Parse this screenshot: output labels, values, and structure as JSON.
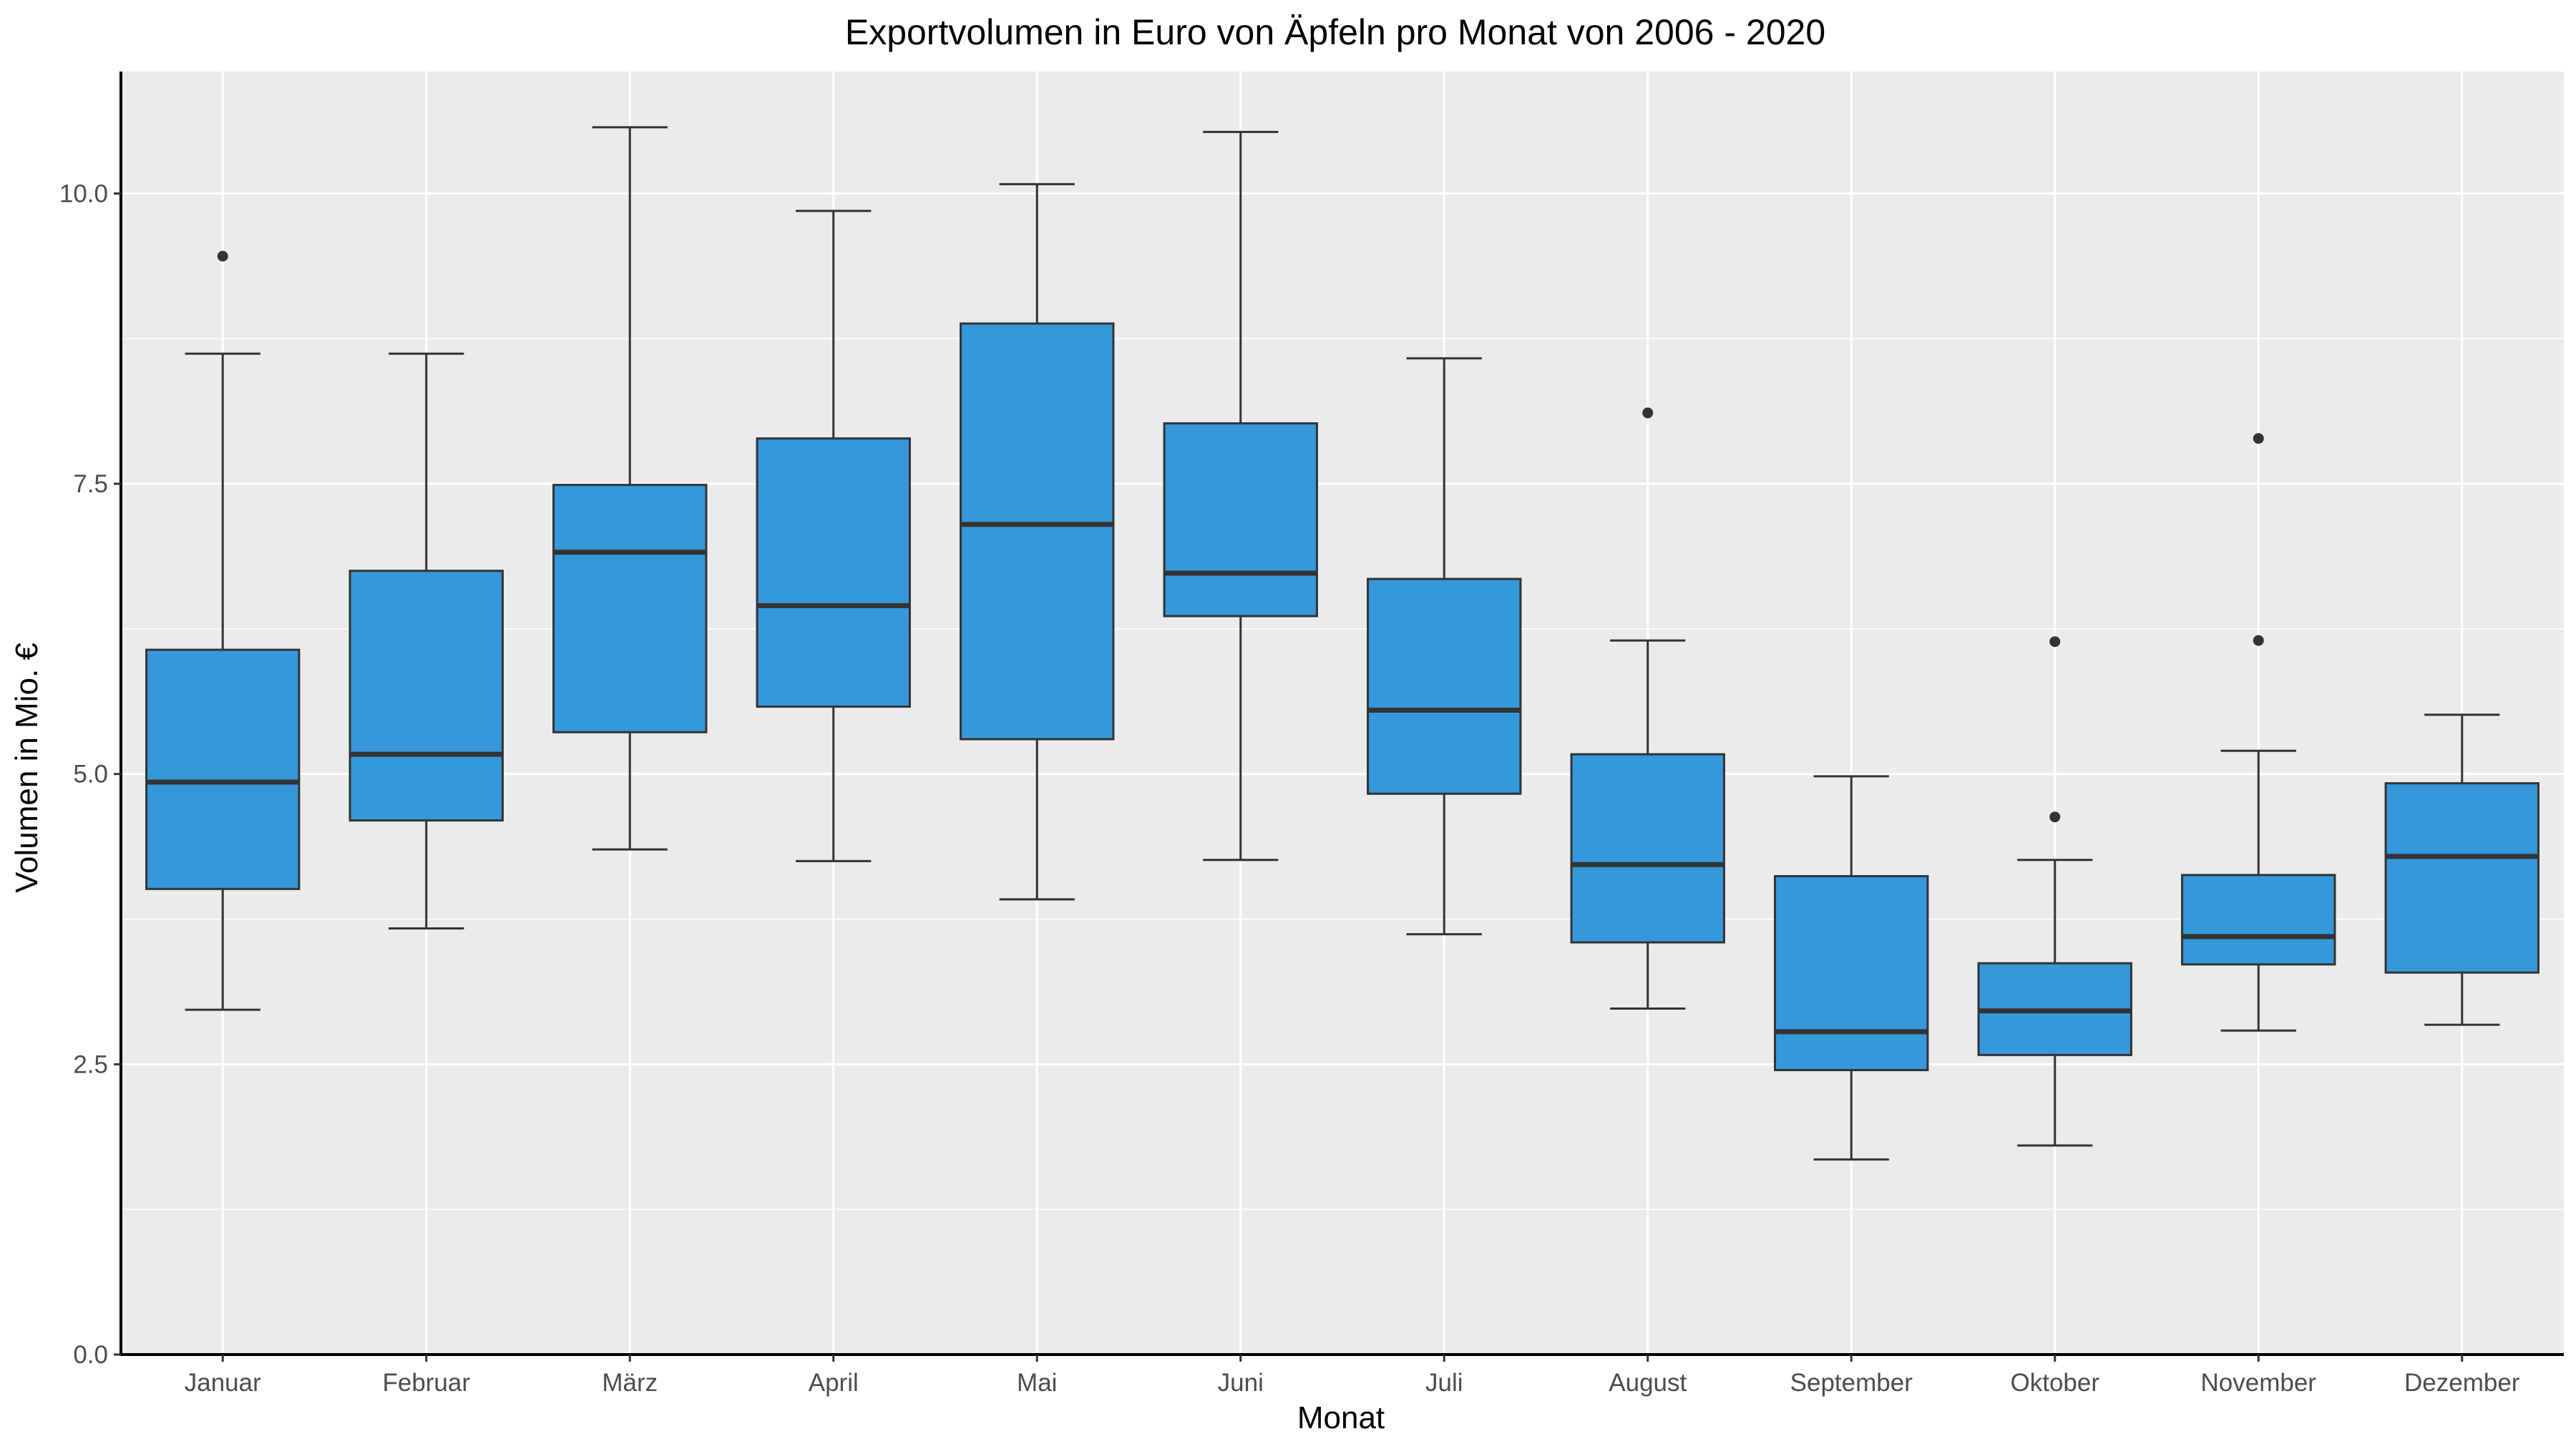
{
  "chart_data": {
    "type": "boxplot",
    "title": "Exportvolumen in Euro von Äpfeln pro Monat von 2006 - 2020",
    "xlabel": "Monat",
    "ylabel": "Volumen in Mio. €",
    "ylim": [
      0,
      11.05
    ],
    "yticks": [
      0,
      2.5,
      5,
      7.5,
      10
    ],
    "ytick_labels": [
      "0.0",
      "2.5",
      "5.0",
      "7.5",
      "10.0"
    ],
    "grid": true,
    "legend": "none",
    "colors": {
      "box_fill": "#3598DB",
      "panel_background": "#EBEBEB",
      "grid": "#FFFFFF",
      "outline": "#333333"
    },
    "categories": [
      "Januar",
      "Februar",
      "März",
      "April",
      "Mai",
      "Juni",
      "Juli",
      "August",
      "September",
      "Oktober",
      "November",
      "Dezember"
    ],
    "boxes": [
      {
        "category": "Januar",
        "whisker_low": 2.97,
        "q1": 4.01,
        "median": 4.93,
        "q3": 6.07,
        "whisker_high": 8.62,
        "outliers": [
          9.46
        ]
      },
      {
        "category": "Februar",
        "whisker_low": 3.67,
        "q1": 4.6,
        "median": 5.17,
        "q3": 6.75,
        "whisker_high": 8.62,
        "outliers": []
      },
      {
        "category": "März",
        "whisker_low": 4.35,
        "q1": 5.36,
        "median": 6.91,
        "q3": 7.49,
        "whisker_high": 10.57,
        "outliers": []
      },
      {
        "category": "April",
        "whisker_low": 4.25,
        "q1": 5.58,
        "median": 6.45,
        "q3": 7.89,
        "whisker_high": 9.85,
        "outliers": []
      },
      {
        "category": "Mai",
        "whisker_low": 3.92,
        "q1": 5.3,
        "median": 7.15,
        "q3": 8.88,
        "whisker_high": 10.08,
        "outliers": []
      },
      {
        "category": "Juni",
        "whisker_low": 4.26,
        "q1": 6.36,
        "median": 6.73,
        "q3": 8.02,
        "whisker_high": 10.53,
        "outliers": []
      },
      {
        "category": "Juli",
        "whisker_low": 3.62,
        "q1": 4.83,
        "median": 5.55,
        "q3": 6.68,
        "whisker_high": 8.58,
        "outliers": []
      },
      {
        "category": "August",
        "whisker_low": 2.98,
        "q1": 3.55,
        "median": 4.22,
        "q3": 5.17,
        "whisker_high": 6.15,
        "outliers": [
          8.11
        ]
      },
      {
        "category": "September",
        "whisker_low": 1.68,
        "q1": 2.45,
        "median": 2.78,
        "q3": 4.12,
        "whisker_high": 4.98,
        "outliers": []
      },
      {
        "category": "Oktober",
        "whisker_low": 1.8,
        "q1": 2.58,
        "median": 2.96,
        "q3": 3.37,
        "whisker_high": 4.26,
        "outliers": [
          4.63,
          6.14
        ]
      },
      {
        "category": "November",
        "whisker_low": 2.79,
        "q1": 3.36,
        "median": 3.6,
        "q3": 4.13,
        "whisker_high": 5.2,
        "outliers": [
          6.15,
          7.89
        ]
      },
      {
        "category": "Dezember",
        "whisker_low": 2.84,
        "q1": 3.29,
        "median": 4.29,
        "q3": 4.92,
        "whisker_high": 5.51,
        "outliers": []
      }
    ]
  }
}
